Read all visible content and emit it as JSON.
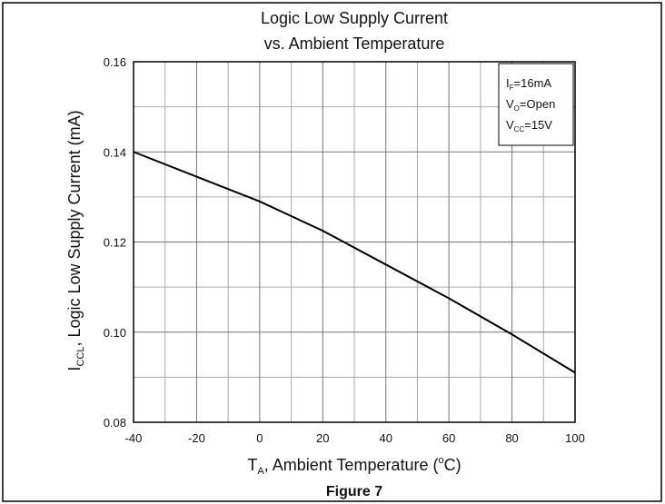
{
  "chart_data": {
    "type": "line",
    "title": [
      "Logic Low Supply Current",
      "vs. Ambient Temperature"
    ],
    "caption": "Figure 7",
    "x_label": {
      "symbol": "T",
      "subscript": "A",
      "text": ", Ambient Temperature (",
      "superscript": "o",
      "unit": "C)"
    },
    "y_label": {
      "symbol": "I",
      "subscript": "CCL",
      "text": ", Logic Low Supply Current (mA)"
    },
    "annotation": [
      {
        "symbol": "I",
        "subscript": "F",
        "text": "=16mA"
      },
      {
        "symbol": "V",
        "subscript": "O",
        "text": "=Open"
      },
      {
        "symbol": "V",
        "subscript": "CC",
        "text": "=15V"
      }
    ],
    "x": [
      -40,
      -20,
      0,
      20,
      40,
      60,
      80,
      100
    ],
    "series": [
      {
        "color": "#000000",
        "values": [
          0.14,
          0.1345,
          0.129,
          0.1225,
          0.115,
          0.1075,
          0.0995,
          0.091
        ]
      }
    ],
    "xlim": [
      -40,
      100
    ],
    "xticks": [
      -40,
      -20,
      0,
      20,
      40,
      60,
      80,
      100
    ],
    "x_minor_ticks": [
      -30,
      -10,
      10,
      30,
      50,
      70,
      90
    ],
    "ylim": [
      0.08,
      0.16
    ],
    "yticks": [
      0.08,
      {
        "value": 0.1,
        "label": "0.10"
      },
      0.12,
      0.14,
      0.16
    ],
    "y_minor_ticks": [
      0.09,
      0.11,
      0.13,
      0.15
    ],
    "grid": true
  }
}
